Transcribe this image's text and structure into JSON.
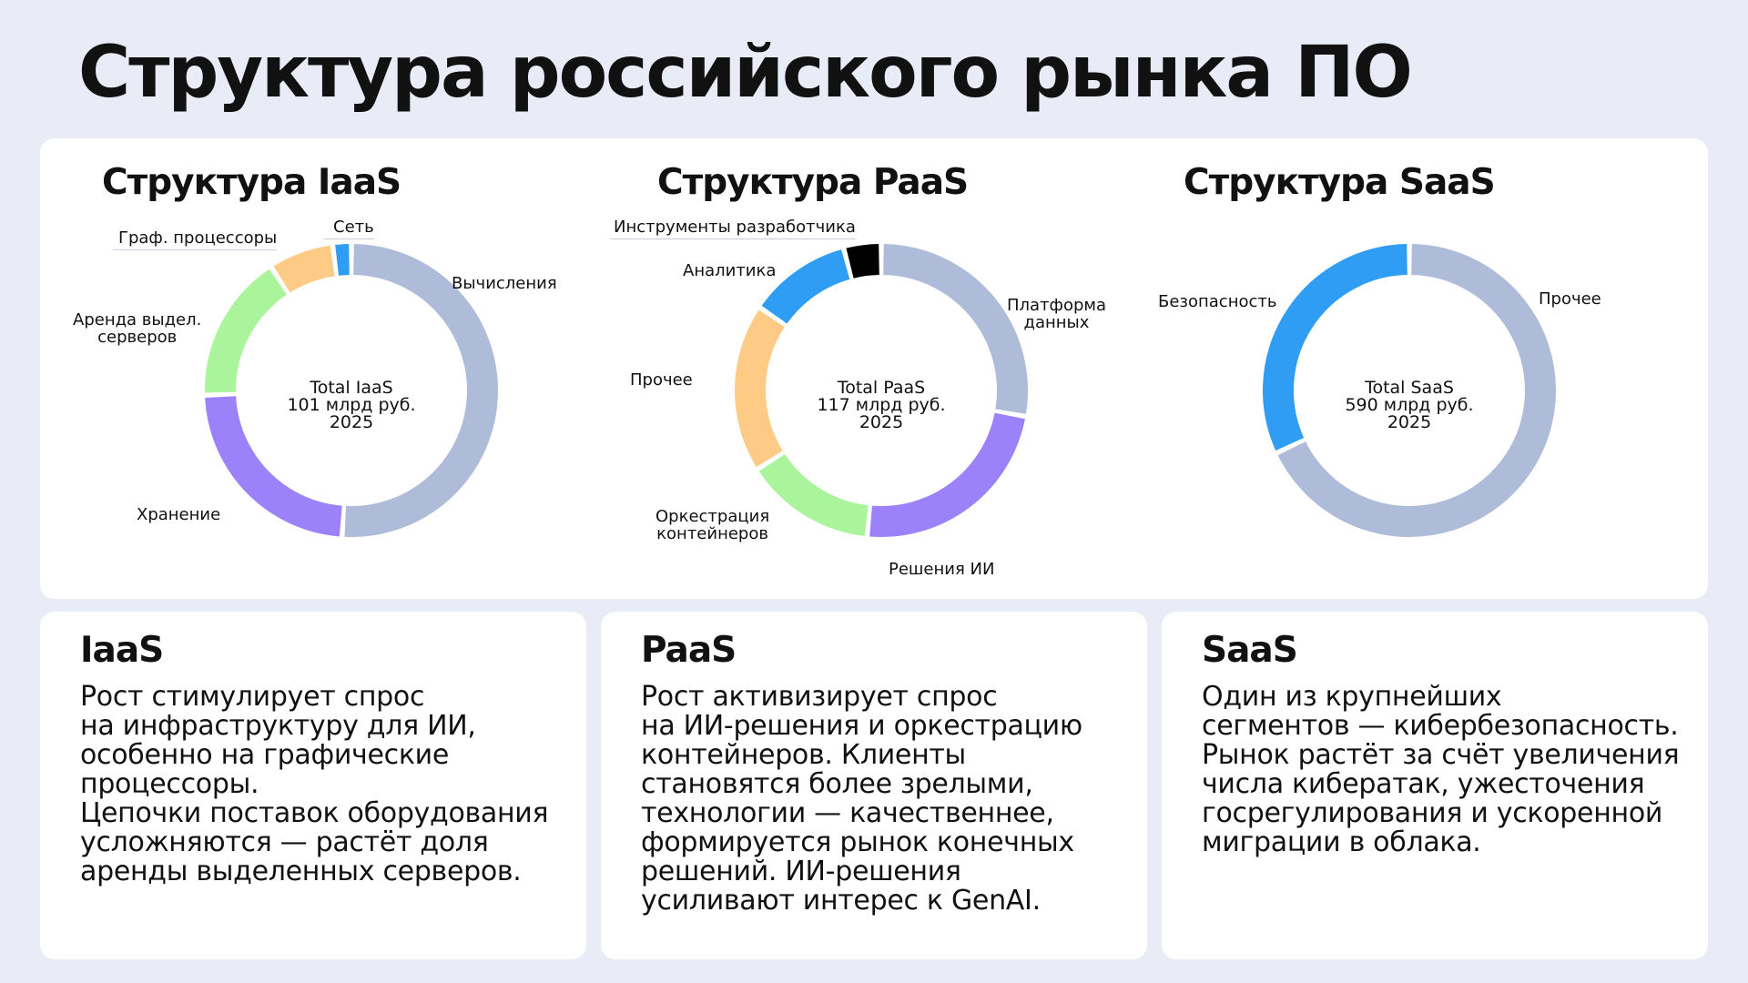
{
  "page": {
    "title": "Структура российского рынка ПО"
  },
  "chart_data": [
    {
      "type": "pie",
      "title": "Структура IaaS",
      "center": [
        "Total IaaS",
        "101 млрд руб.",
        "2025"
      ],
      "categories": [
        "Вычисления",
        "Хранение",
        "Аренда выдел. серверов",
        "Граф. процессоры",
        "Сеть"
      ],
      "label_lines": [
        [
          "Вычисления"
        ],
        [
          "Хранение"
        ],
        [
          "Аренда выдел.",
          "серверов"
        ],
        [
          "Граф. процессоры"
        ],
        [
          "Сеть"
        ]
      ],
      "values": [
        50,
        23,
        16,
        7,
        2
      ],
      "colors": [
        "#afbcd9",
        "#9b82fb",
        "#aaf59c",
        "#fdcb85",
        "#2f9df4"
      ]
    },
    {
      "type": "pie",
      "title": "Структура PaaS",
      "center": [
        "Total PaaS",
        "117 млрд руб.",
        "2025"
      ],
      "categories": [
        "Платформа данных",
        "Решения ИИ",
        "Оркестрация контейнеров",
        "Прочее",
        "Аналитика",
        "Инструменты разработчика"
      ],
      "label_lines": [
        [
          "Платформа",
          "данных"
        ],
        [
          "Решения ИИ"
        ],
        [
          "Оркестрация",
          "контейнеров"
        ],
        [
          "Прочее"
        ],
        [
          "Аналитика"
        ],
        [
          "Инструменты разработчика"
        ]
      ],
      "values": [
        27,
        23,
        14,
        18,
        11,
        4
      ],
      "colors": [
        "#afbcd9",
        "#9b82fb",
        "#aaf59c",
        "#fdcb85",
        "#2f9df4",
        "#000000"
      ]
    },
    {
      "type": "pie",
      "title": "Структура SaaS",
      "center": [
        "Total SaaS",
        "590 млрд руб.",
        "2025"
      ],
      "categories": [
        "Прочее",
        "Безопасность"
      ],
      "label_lines": [
        [
          "Прочее"
        ],
        [
          "Безопасность"
        ]
      ],
      "values": [
        68,
        32
      ],
      "colors": [
        "#afbcd9",
        "#2f9df4"
      ]
    }
  ],
  "cards": [
    {
      "title": "IaaS",
      "text": "Рост стимулирует спрос\nна инфраструктуру для ИИ,\nособенно на графические\nпроцессоры.\nЦепочки поставок оборудования\nусложняются — растёт доля\nаренды выделенных серверов."
    },
    {
      "title": "PaaS",
      "text": "Рост активизирует спрос\nна ИИ-решения и оркестрацию\nконтейнеров. Клиенты\nстановятся более зрелыми,\nтехнологии — качественнее,\nформируется рынок конечных\nрешений. ИИ-решения\nусиливают интерес к GenAI."
    },
    {
      "title": "SaaS",
      "text": "Один из крупнейших\nсегментов — кибербезопасность.\nРынок растёт за счёт увеличения\nчисла кибератак, ужесточения\nгосрегулирования и ускоренной\nмиграции в облака."
    }
  ]
}
